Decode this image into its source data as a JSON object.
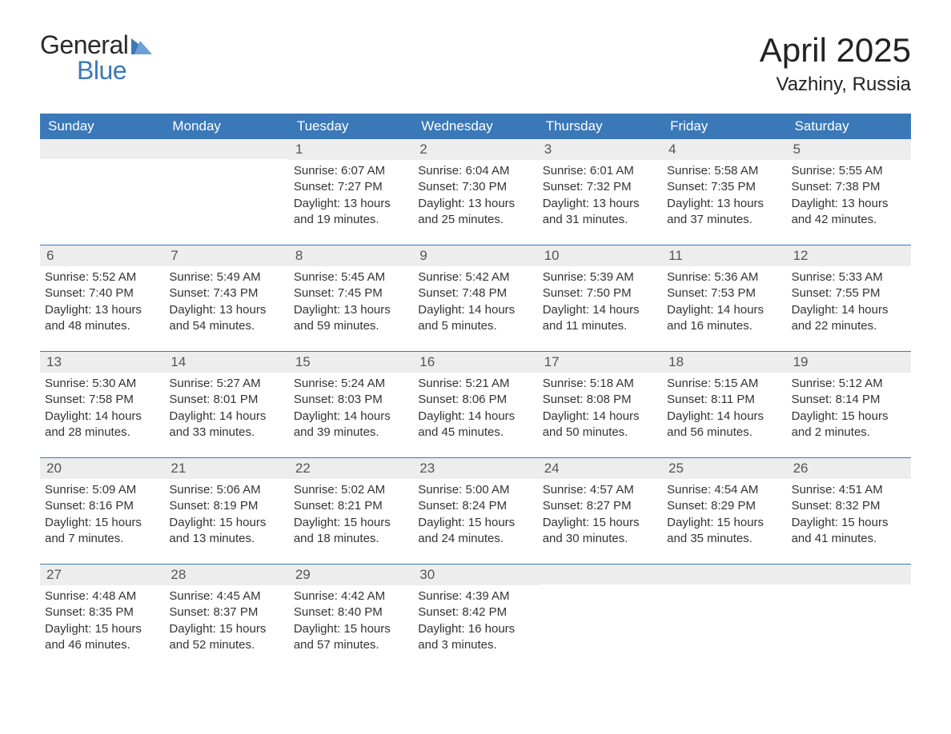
{
  "brand": {
    "word1": "General",
    "word2": "Blue",
    "accent_color": "#3b78b8",
    "text_color": "#2a2a2a"
  },
  "header": {
    "title": "April 2025",
    "location": "Vazhiny, Russia"
  },
  "colors": {
    "header_bg": "#3b78b8",
    "header_text": "#ffffff",
    "date_strip_bg": "#ededed",
    "body_text": "#333333",
    "page_bg": "#ffffff",
    "week_divider": "#3b78b8"
  },
  "typography": {
    "title_fontsize": 42,
    "location_fontsize": 24,
    "dayname_fontsize": 17,
    "cell_fontsize": 15
  },
  "daynames": [
    "Sunday",
    "Monday",
    "Tuesday",
    "Wednesday",
    "Thursday",
    "Friday",
    "Saturday"
  ],
  "weeks": [
    [
      {
        "date": "",
        "sunrise": "",
        "sunset": "",
        "daylight1": "",
        "daylight2": ""
      },
      {
        "date": "",
        "sunrise": "",
        "sunset": "",
        "daylight1": "",
        "daylight2": ""
      },
      {
        "date": "1",
        "sunrise": "Sunrise: 6:07 AM",
        "sunset": "Sunset: 7:27 PM",
        "daylight1": "Daylight: 13 hours",
        "daylight2": "and 19 minutes."
      },
      {
        "date": "2",
        "sunrise": "Sunrise: 6:04 AM",
        "sunset": "Sunset: 7:30 PM",
        "daylight1": "Daylight: 13 hours",
        "daylight2": "and 25 minutes."
      },
      {
        "date": "3",
        "sunrise": "Sunrise: 6:01 AM",
        "sunset": "Sunset: 7:32 PM",
        "daylight1": "Daylight: 13 hours",
        "daylight2": "and 31 minutes."
      },
      {
        "date": "4",
        "sunrise": "Sunrise: 5:58 AM",
        "sunset": "Sunset: 7:35 PM",
        "daylight1": "Daylight: 13 hours",
        "daylight2": "and 37 minutes."
      },
      {
        "date": "5",
        "sunrise": "Sunrise: 5:55 AM",
        "sunset": "Sunset: 7:38 PM",
        "daylight1": "Daylight: 13 hours",
        "daylight2": "and 42 minutes."
      }
    ],
    [
      {
        "date": "6",
        "sunrise": "Sunrise: 5:52 AM",
        "sunset": "Sunset: 7:40 PM",
        "daylight1": "Daylight: 13 hours",
        "daylight2": "and 48 minutes."
      },
      {
        "date": "7",
        "sunrise": "Sunrise: 5:49 AM",
        "sunset": "Sunset: 7:43 PM",
        "daylight1": "Daylight: 13 hours",
        "daylight2": "and 54 minutes."
      },
      {
        "date": "8",
        "sunrise": "Sunrise: 5:45 AM",
        "sunset": "Sunset: 7:45 PM",
        "daylight1": "Daylight: 13 hours",
        "daylight2": "and 59 minutes."
      },
      {
        "date": "9",
        "sunrise": "Sunrise: 5:42 AM",
        "sunset": "Sunset: 7:48 PM",
        "daylight1": "Daylight: 14 hours",
        "daylight2": "and 5 minutes."
      },
      {
        "date": "10",
        "sunrise": "Sunrise: 5:39 AM",
        "sunset": "Sunset: 7:50 PM",
        "daylight1": "Daylight: 14 hours",
        "daylight2": "and 11 minutes."
      },
      {
        "date": "11",
        "sunrise": "Sunrise: 5:36 AM",
        "sunset": "Sunset: 7:53 PM",
        "daylight1": "Daylight: 14 hours",
        "daylight2": "and 16 minutes."
      },
      {
        "date": "12",
        "sunrise": "Sunrise: 5:33 AM",
        "sunset": "Sunset: 7:55 PM",
        "daylight1": "Daylight: 14 hours",
        "daylight2": "and 22 minutes."
      }
    ],
    [
      {
        "date": "13",
        "sunrise": "Sunrise: 5:30 AM",
        "sunset": "Sunset: 7:58 PM",
        "daylight1": "Daylight: 14 hours",
        "daylight2": "and 28 minutes."
      },
      {
        "date": "14",
        "sunrise": "Sunrise: 5:27 AM",
        "sunset": "Sunset: 8:01 PM",
        "daylight1": "Daylight: 14 hours",
        "daylight2": "and 33 minutes."
      },
      {
        "date": "15",
        "sunrise": "Sunrise: 5:24 AM",
        "sunset": "Sunset: 8:03 PM",
        "daylight1": "Daylight: 14 hours",
        "daylight2": "and 39 minutes."
      },
      {
        "date": "16",
        "sunrise": "Sunrise: 5:21 AM",
        "sunset": "Sunset: 8:06 PM",
        "daylight1": "Daylight: 14 hours",
        "daylight2": "and 45 minutes."
      },
      {
        "date": "17",
        "sunrise": "Sunrise: 5:18 AM",
        "sunset": "Sunset: 8:08 PM",
        "daylight1": "Daylight: 14 hours",
        "daylight2": "and 50 minutes."
      },
      {
        "date": "18",
        "sunrise": "Sunrise: 5:15 AM",
        "sunset": "Sunset: 8:11 PM",
        "daylight1": "Daylight: 14 hours",
        "daylight2": "and 56 minutes."
      },
      {
        "date": "19",
        "sunrise": "Sunrise: 5:12 AM",
        "sunset": "Sunset: 8:14 PM",
        "daylight1": "Daylight: 15 hours",
        "daylight2": "and 2 minutes."
      }
    ],
    [
      {
        "date": "20",
        "sunrise": "Sunrise: 5:09 AM",
        "sunset": "Sunset: 8:16 PM",
        "daylight1": "Daylight: 15 hours",
        "daylight2": "and 7 minutes."
      },
      {
        "date": "21",
        "sunrise": "Sunrise: 5:06 AM",
        "sunset": "Sunset: 8:19 PM",
        "daylight1": "Daylight: 15 hours",
        "daylight2": "and 13 minutes."
      },
      {
        "date": "22",
        "sunrise": "Sunrise: 5:02 AM",
        "sunset": "Sunset: 8:21 PM",
        "daylight1": "Daylight: 15 hours",
        "daylight2": "and 18 minutes."
      },
      {
        "date": "23",
        "sunrise": "Sunrise: 5:00 AM",
        "sunset": "Sunset: 8:24 PM",
        "daylight1": "Daylight: 15 hours",
        "daylight2": "and 24 minutes."
      },
      {
        "date": "24",
        "sunrise": "Sunrise: 4:57 AM",
        "sunset": "Sunset: 8:27 PM",
        "daylight1": "Daylight: 15 hours",
        "daylight2": "and 30 minutes."
      },
      {
        "date": "25",
        "sunrise": "Sunrise: 4:54 AM",
        "sunset": "Sunset: 8:29 PM",
        "daylight1": "Daylight: 15 hours",
        "daylight2": "and 35 minutes."
      },
      {
        "date": "26",
        "sunrise": "Sunrise: 4:51 AM",
        "sunset": "Sunset: 8:32 PM",
        "daylight1": "Daylight: 15 hours",
        "daylight2": "and 41 minutes."
      }
    ],
    [
      {
        "date": "27",
        "sunrise": "Sunrise: 4:48 AM",
        "sunset": "Sunset: 8:35 PM",
        "daylight1": "Daylight: 15 hours",
        "daylight2": "and 46 minutes."
      },
      {
        "date": "28",
        "sunrise": "Sunrise: 4:45 AM",
        "sunset": "Sunset: 8:37 PM",
        "daylight1": "Daylight: 15 hours",
        "daylight2": "and 52 minutes."
      },
      {
        "date": "29",
        "sunrise": "Sunrise: 4:42 AM",
        "sunset": "Sunset: 8:40 PM",
        "daylight1": "Daylight: 15 hours",
        "daylight2": "and 57 minutes."
      },
      {
        "date": "30",
        "sunrise": "Sunrise: 4:39 AM",
        "sunset": "Sunset: 8:42 PM",
        "daylight1": "Daylight: 16 hours",
        "daylight2": "and 3 minutes."
      },
      {
        "date": "",
        "sunrise": "",
        "sunset": "",
        "daylight1": "",
        "daylight2": ""
      },
      {
        "date": "",
        "sunrise": "",
        "sunset": "",
        "daylight1": "",
        "daylight2": ""
      },
      {
        "date": "",
        "sunrise": "",
        "sunset": "",
        "daylight1": "",
        "daylight2": ""
      }
    ]
  ]
}
